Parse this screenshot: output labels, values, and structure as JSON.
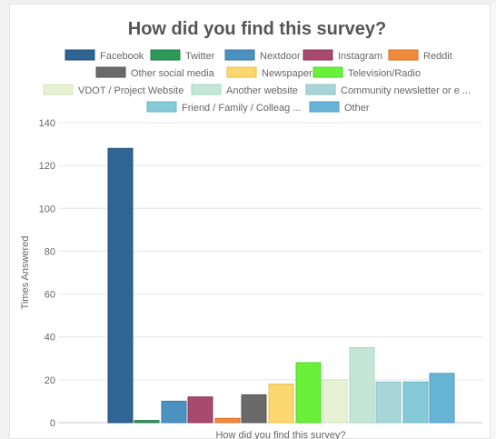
{
  "chart_data": {
    "type": "bar",
    "title": "How did you find this survey?",
    "xlabel": "How did you find this survey?",
    "ylabel": "Times Answered",
    "ylim": [
      0,
      140
    ],
    "yticks": [
      0,
      20,
      40,
      60,
      80,
      100,
      120,
      140
    ],
    "grid": true,
    "legend_position": "top",
    "categories": [
      "Facebook",
      "Twitter",
      "Nextdoor",
      "Instagram",
      "Reddit",
      "Other social media",
      "Newspaper",
      "Television/Radio",
      "VDOT / Project Website",
      "Another website",
      "Community newsletter or e ...",
      "Friend / Family / Colleag ...",
      "Other"
    ],
    "values": [
      128,
      1,
      10,
      12,
      2,
      13,
      18,
      28,
      20,
      35,
      19,
      19,
      23
    ],
    "colors": [
      "#2e6594",
      "#2e9a5a",
      "#4b92c0",
      "#a84a6e",
      "#f08a3c",
      "#6a6a6a",
      "#fcd66e",
      "#6af03a",
      "#e6f2d3",
      "#c4e6d6",
      "#a8d6d8",
      "#86cad8",
      "#68b4d6"
    ],
    "border_colors": [
      "#1f4f78",
      "#1f7a44",
      "#367aa6",
      "#8c3558",
      "#d46e22",
      "#555555",
      "#e8bd4a",
      "#4fd624",
      "#d2e4ba",
      "#a6d4bf",
      "#8cc2c4",
      "#6ab6c6",
      "#4c9cc2"
    ]
  }
}
